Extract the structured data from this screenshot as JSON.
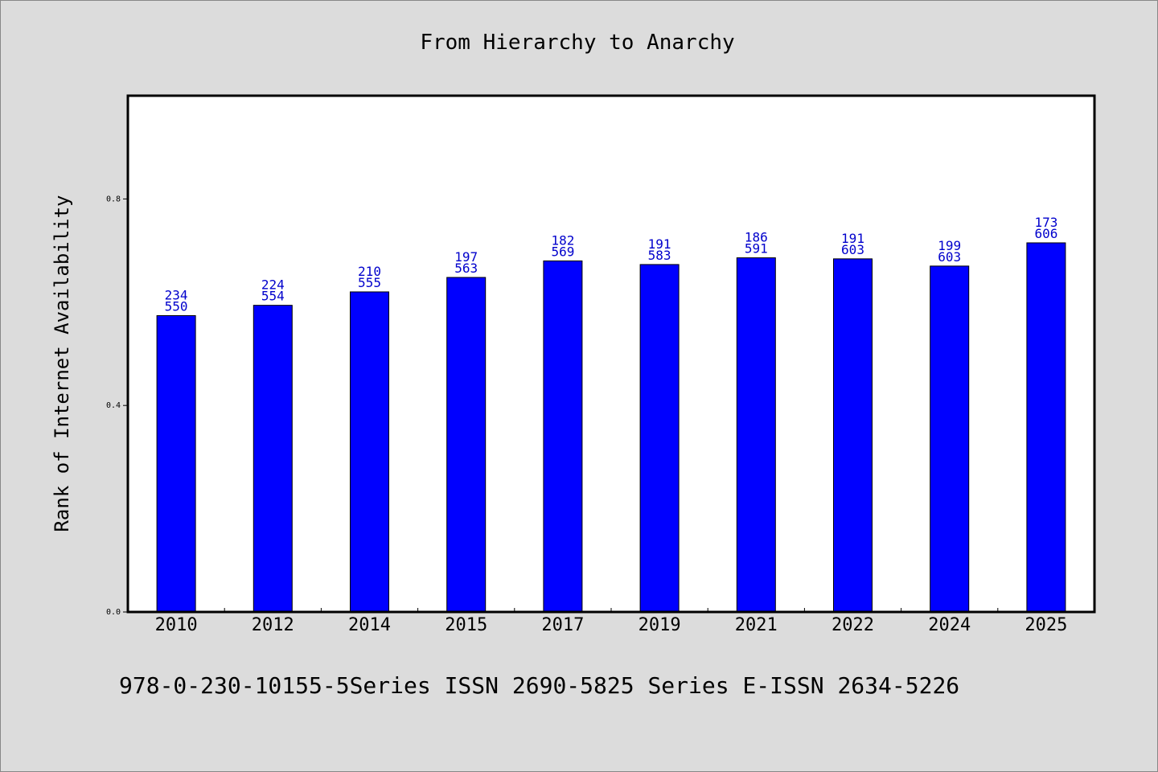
{
  "chart_data": {
    "type": "bar",
    "title": "From Hierarchy to Anarchy",
    "xlabel": "",
    "ylabel": "Rank of Internet Availability",
    "categories": [
      "2010",
      "2012",
      "2014",
      "2015",
      "2017",
      "2019",
      "2021",
      "2022",
      "2024",
      "2025"
    ],
    "values": [
      0.574,
      0.594,
      0.62,
      0.648,
      0.68,
      0.673,
      0.686,
      0.684,
      0.67,
      0.715
    ],
    "label_top": [
      "234",
      "224",
      "210",
      "197",
      "182",
      "191",
      "186",
      "191",
      "199",
      "173"
    ],
    "label_bottom": [
      "550",
      "554",
      "555",
      "563",
      "569",
      "583",
      "591",
      "603",
      "603",
      "606"
    ],
    "ylim": [
      0,
      1.0
    ],
    "yticks": [
      0.0,
      0.4,
      0.8
    ],
    "ytick_labels": [
      "0.0",
      "0.4",
      "0.8"
    ],
    "grid": false,
    "colors": {
      "bar": "#0000ff",
      "bar_edge": "#000000",
      "label": "#0000cc",
      "background": "#dcdcdc",
      "plot_bg": "#ffffff"
    }
  },
  "footer": "978-0-230-10155-5Series ISSN 2690-5825 Series E-ISSN 2634-5226"
}
